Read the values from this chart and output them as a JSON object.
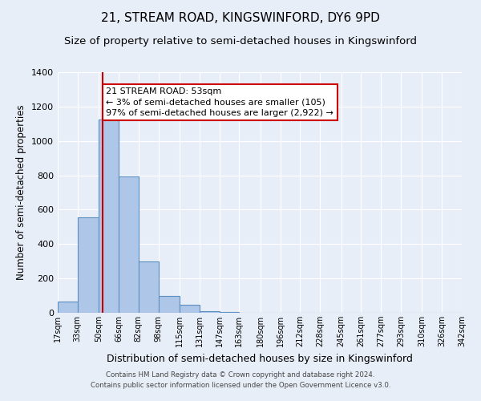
{
  "title": "21, STREAM ROAD, KINGSWINFORD, DY6 9PD",
  "subtitle": "Size of property relative to semi-detached houses in Kingswinford",
  "xlabel": "Distribution of semi-detached houses by size in Kingswinford",
  "ylabel": "Number of semi-detached properties",
  "footer1": "Contains HM Land Registry data © Crown copyright and database right 2024.",
  "footer2": "Contains public sector information licensed under the Open Government Licence v3.0.",
  "annotation_title": "21 STREAM ROAD: 53sqm",
  "annotation_line1": "← 3% of semi-detached houses are smaller (105)",
  "annotation_line2": "97% of semi-detached houses are larger (2,922) →",
  "property_line_x": 53,
  "bin_edges": [
    17,
    33,
    50,
    66,
    82,
    98,
    115,
    131,
    147,
    163,
    180,
    196,
    212,
    228,
    245,
    261,
    277,
    293,
    310,
    326,
    342
  ],
  "bar_values": [
    65,
    555,
    1125,
    795,
    300,
    100,
    45,
    8,
    3,
    2,
    1,
    0,
    0,
    0,
    0,
    0,
    0,
    0,
    0,
    0
  ],
  "bar_color": "#aec6e8",
  "bar_edge_color": "#5a8fc0",
  "property_line_color": "#cc0000",
  "annotation_box_edge_color": "#cc0000",
  "ylim": [
    0,
    1400
  ],
  "yticks": [
    0,
    200,
    400,
    600,
    800,
    1000,
    1200,
    1400
  ],
  "background_color": "#e8eef8",
  "plot_bg_color": "#e8eef8",
  "grid_color": "#ffffff",
  "title_fontsize": 11,
  "subtitle_fontsize": 9.5,
  "ylabel_fontsize": 8.5,
  "xlabel_fontsize": 9,
  "tick_label_fontsize": 7,
  "annotation_fontsize": 8,
  "footer_fontsize": 6.2
}
